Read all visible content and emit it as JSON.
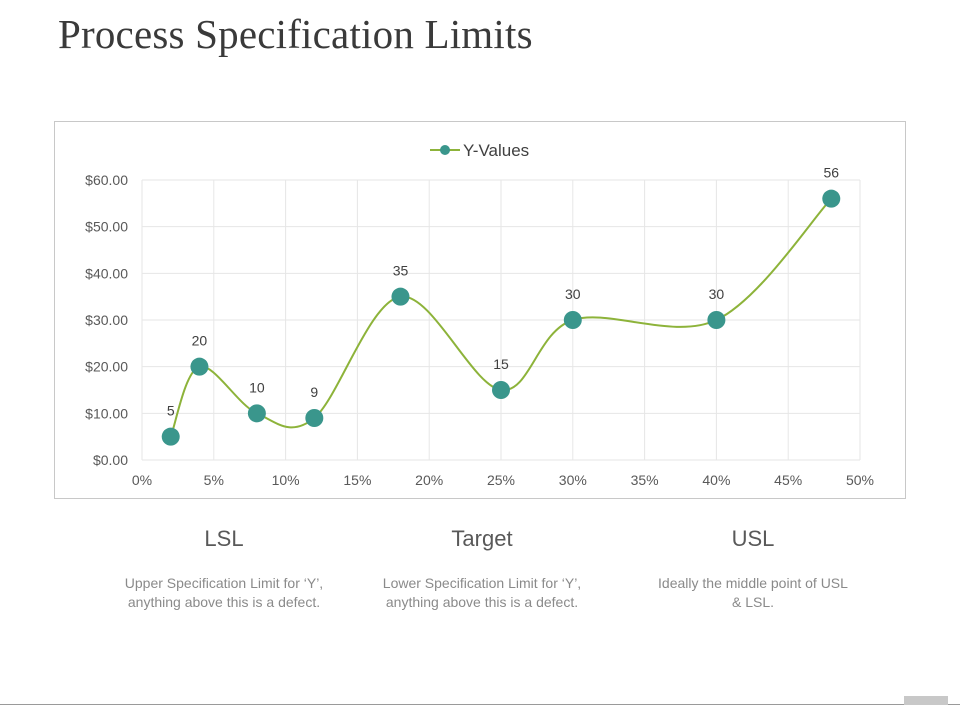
{
  "page": {
    "title": "Process Specification Limits"
  },
  "chart_data": {
    "type": "line",
    "smooth": true,
    "legend": {
      "label": "Y-Values",
      "position": "top"
    },
    "x": [
      2,
      4,
      8,
      12,
      18,
      25,
      30,
      40,
      48
    ],
    "series": [
      {
        "name": "Y-Values",
        "values": [
          5,
          20,
          10,
          9,
          35,
          15,
          30,
          30,
          56
        ]
      }
    ],
    "data_labels": [
      "5",
      "20",
      "10",
      "9",
      "35",
      "15",
      "30",
      "30",
      "56"
    ],
    "xlim": [
      0,
      50
    ],
    "ylim": [
      0,
      60
    ],
    "x_ticks": [
      0,
      5,
      10,
      15,
      20,
      25,
      30,
      35,
      40,
      45,
      50
    ],
    "x_tick_labels": [
      "0%",
      "5%",
      "10%",
      "15%",
      "20%",
      "25%",
      "30%",
      "35%",
      "40%",
      "45%",
      "50%"
    ],
    "y_ticks": [
      0,
      10,
      20,
      30,
      40,
      50,
      60
    ],
    "y_tick_labels": [
      "$0.00",
      "$10.00",
      "$20.00",
      "$30.00",
      "$40.00",
      "$50.00",
      "$60.00"
    ],
    "grid": true,
    "line_color": "#8db33a",
    "marker_color": "#3a968c",
    "title": "",
    "xlabel": "",
    "ylabel": ""
  },
  "columns": [
    {
      "heading": "LSL",
      "text": "Upper Specification Limit for ‘Y’, anything above this is a defect."
    },
    {
      "heading": "Target",
      "text": "Lower Specification Limit for ‘Y’, anything above this is a defect."
    },
    {
      "heading": "USL",
      "text": "Ideally the middle point of USL & LSL."
    }
  ]
}
